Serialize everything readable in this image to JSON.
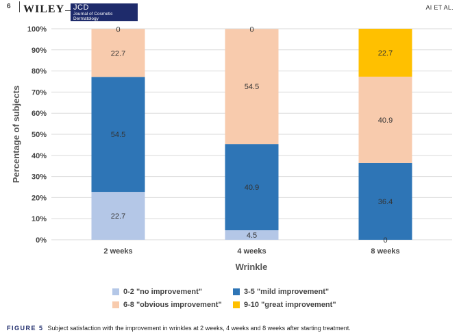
{
  "header": {
    "page_number": "6",
    "publisher": "WILEY",
    "journal_abbr": "JCD",
    "journal_name": "Journal of Cosmetic Dermatology",
    "running_head": "AI ET AL."
  },
  "caption": {
    "label": "FIGURE 5",
    "text": "Subject satisfaction with the improvement in wrinkles at 2 weeks, 4 weeks and 8 weeks after starting treatment."
  },
  "colors": {
    "no_improvement": "#b4c7e7",
    "mild_improvement": "#2e75b6",
    "obvious_improvement": "#f8cbad",
    "great_improvement": "#ffc000",
    "gridline": "#d9d9d9"
  },
  "chart_data": {
    "type": "bar",
    "stacked": true,
    "categories": [
      "2 weeks",
      "4 weeks",
      "8 weeks"
    ],
    "series": [
      {
        "name": "0-2 \"no improvement\"",
        "values": [
          22.7,
          4.5,
          0
        ],
        "labels": [
          "22.7",
          "4.5",
          "0"
        ]
      },
      {
        "name": "3-5 \"mild improvement\"",
        "values": [
          54.5,
          40.9,
          36.4
        ],
        "labels": [
          "54.5",
          "40.9",
          "36.4"
        ]
      },
      {
        "name": "6-8 \"obvious improvement\"",
        "values": [
          22.7,
          54.5,
          40.9
        ],
        "labels": [
          "22.7",
          "54.5",
          "40.9"
        ]
      },
      {
        "name": "9-10 \"great improvement\"",
        "values": [
          0,
          0,
          22.7
        ],
        "labels": [
          "0",
          "0",
          "22.7"
        ]
      }
    ],
    "xlabel": "Wrinkle",
    "ylabel": "Percentage of subjects",
    "ylim": [
      0,
      100
    ],
    "yticks": [
      "0%",
      "10%",
      "20%",
      "30%",
      "40%",
      "50%",
      "60%",
      "70%",
      "80%",
      "90%",
      "100%"
    ],
    "grid": true,
    "legend_position": "bottom"
  }
}
